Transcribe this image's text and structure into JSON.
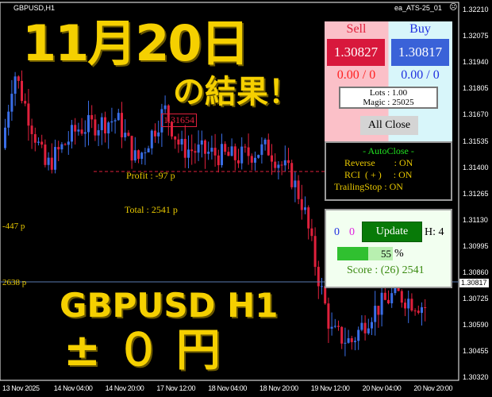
{
  "header": {
    "symbol": "GBPUSD,H1",
    "ea_name": "ea_ATS-25_01",
    "ea_icon": "frown-face-icon"
  },
  "price_axis": [
    "1.32210",
    "1.32075",
    "1.31940",
    "1.31805",
    "1.31670",
    "1.31535",
    "1.31400",
    "1.31265",
    "1.31130",
    "1.30995",
    "1.30860",
    "1.30725",
    "1.30590",
    "1.30455",
    "1.30320"
  ],
  "current_price": "1.30817",
  "time_axis": [
    "13 Nov 2025",
    "14 Nov 04:00",
    "14 Nov 20:00",
    "17 Nov 12:00",
    "18 Nov 04:00",
    "18 Nov 20:00",
    "19 Nov 12:00",
    "20 Nov 04:00",
    "20 Nov 20:00"
  ],
  "overlay": {
    "date": "11月20日",
    "subtitle": "の結果！",
    "pair": "GBPUSD H1",
    "result": "± ０ 円"
  },
  "chart_labels": {
    "price_tag": "1.31654",
    "profit": "Profit : -97 p",
    "total": "Total : 2541 p",
    "left_a": "-447 p",
    "left_b": "2638 p"
  },
  "trade_panel": {
    "sell_label": "Sell",
    "buy_label": "Buy",
    "sell_price": "1.30827",
    "buy_price": "1.30817",
    "sell_pos": "0.00 / 0",
    "buy_pos": "0.00 / 0",
    "lots": "Lots   : 1.00",
    "magic": "Magic : 25025",
    "all_close": "All Close"
  },
  "autoclose": {
    "title": "- AutoClose -",
    "rows": [
      "Reverse        : ON",
      "RCI  ( + )     : ON",
      "TrailingStop : ON"
    ]
  },
  "score_panel": {
    "count_blue": "0",
    "count_magenta": "0",
    "update": "Update",
    "h": "H: 4",
    "progress": 55,
    "progress_label": "55",
    "percent": "%",
    "score": "Score : (26) 2541"
  },
  "colors": {
    "bull": "#3a6ee8",
    "bear": "#e0203c",
    "overlay_text": "#f5d000",
    "label_text": "#e8c800"
  }
}
